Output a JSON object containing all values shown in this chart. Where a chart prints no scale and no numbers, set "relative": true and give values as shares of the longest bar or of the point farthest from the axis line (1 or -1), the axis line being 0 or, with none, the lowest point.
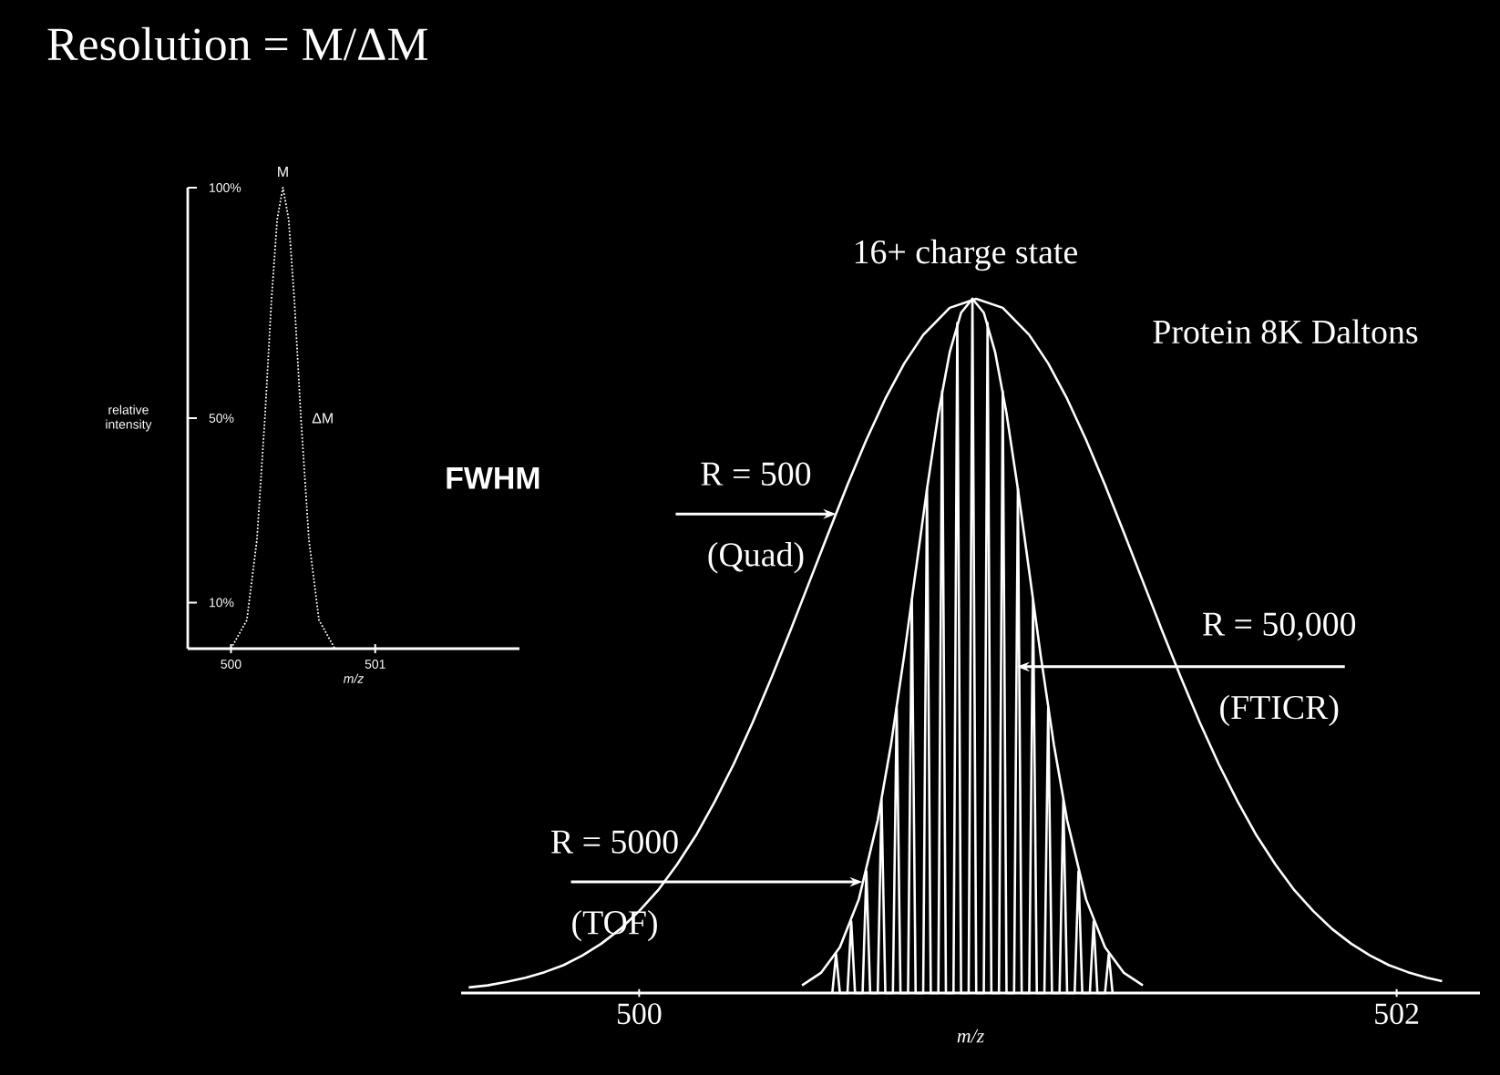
{
  "chart_data": [
    {
      "type": "line",
      "title": "Resolution = M/ΔM",
      "xlabel": "m/z",
      "ylabel": "relative intensity",
      "xlim": [
        499.7,
        502.0
      ],
      "xticks": [
        500,
        501
      ],
      "ylim": [
        0,
        100
      ],
      "yticks": [
        {
          "value": 10,
          "label": "10%"
        },
        {
          "value": 50,
          "label": "50%"
        },
        {
          "value": 100,
          "label": "100%"
        }
      ],
      "line_style": "dotted",
      "series": [
        {
          "color": "#ffffff",
          "x": [
            500.0,
            500.11,
            500.18,
            500.235,
            500.28,
            500.32,
            500.36,
            500.4,
            500.44,
            500.485,
            500.54,
            500.61,
            500.72
          ],
          "values": [
            0,
            6.2,
            23.7,
            50,
            75.3,
            93.1,
            100,
            93.1,
            75.3,
            50,
            23.7,
            6.2,
            0
          ]
        }
      ],
      "annotations": [
        {
          "text": "M",
          "x": 500.36,
          "y": 100
        },
        {
          "text": "ΔM",
          "x": 500.485,
          "y": 50
        },
        "FWHM"
      ]
    },
    {
      "type": "line",
      "xlabel": "m/z",
      "xlim": [
        499.53,
        502.22
      ],
      "xticks": [
        500,
        502
      ],
      "relative": true,
      "line_style": "solid",
      "series": [
        {
          "color": "#ffffff",
          "x": [
            499.55,
            499.6,
            499.65,
            499.7,
            499.75,
            499.8,
            499.85,
            499.9,
            499.95,
            500.0,
            500.05,
            500.1,
            500.15,
            500.2,
            500.25,
            500.3,
            500.35,
            500.4,
            500.45,
            500.5,
            500.55,
            500.6,
            500.65,
            500.7,
            500.75,
            500.82,
            500.89,
            500.96,
            501.03,
            501.08,
            501.13,
            501.18,
            501.23,
            501.28,
            501.33,
            501.38,
            501.43,
            501.48,
            501.53,
            501.58,
            501.63,
            501.68,
            501.73,
            501.78,
            501.83,
            501.88,
            501.93,
            501.98,
            502.03,
            502.08,
            502.12
          ],
          "values": [
            0.008,
            0.011,
            0.016,
            0.022,
            0.03,
            0.04,
            0.054,
            0.071,
            0.092,
            0.118,
            0.148,
            0.185,
            0.227,
            0.276,
            0.33,
            0.39,
            0.455,
            0.523,
            0.593,
            0.663,
            0.732,
            0.797,
            0.856,
            0.907,
            0.948,
            0.987,
            1,
            0.987,
            0.948,
            0.907,
            0.856,
            0.797,
            0.732,
            0.663,
            0.593,
            0.523,
            0.455,
            0.39,
            0.33,
            0.276,
            0.227,
            0.185,
            0.148,
            0.118,
            0.092,
            0.071,
            0.054,
            0.04,
            0.03,
            0.022,
            0.017
          ]
        },
        {
          "color": "#ffffff",
          "x": [
            500.43,
            500.48,
            500.53,
            500.58,
            500.63,
            500.665,
            500.7,
            500.73,
            500.76,
            500.79,
            500.82,
            500.85,
            500.88,
            500.91,
            500.94,
            500.97,
            501.0,
            501.03,
            501.06,
            501.095,
            501.13,
            501.18,
            501.23,
            501.28,
            501.33
          ],
          "values": [
            0.011,
            0.029,
            0.066,
            0.135,
            0.249,
            0.358,
            0.487,
            0.607,
            0.726,
            0.835,
            0.923,
            0.98,
            1,
            0.98,
            0.923,
            0.835,
            0.726,
            0.607,
            0.487,
            0.358,
            0.249,
            0.135,
            0.066,
            0.029,
            0.011
          ]
        },
        {
          "color": "#ffffff",
          "x": [
            500.51,
            500.52,
            500.53,
            500.55,
            500.56,
            500.57,
            500.59,
            500.6,
            500.61,
            500.63,
            500.64,
            500.65,
            500.67,
            500.68,
            500.69,
            500.71,
            500.72,
            500.73,
            500.75,
            500.76,
            500.77,
            500.79,
            500.8,
            500.81,
            500.83,
            500.84,
            500.85,
            500.87,
            500.88,
            500.89,
            500.91,
            500.92,
            500.93,
            500.95,
            500.96,
            500.97,
            500.99,
            501.0,
            501.01,
            501.03,
            501.04,
            501.05,
            501.07,
            501.08,
            501.09,
            501.11,
            501.12,
            501.13,
            501.15,
            501.16,
            501.17,
            501.19,
            501.2,
            501.21,
            501.23,
            501.24,
            501.25
          ],
          "values": [
            0,
            0.056,
            0,
            0,
            0.103,
            0,
            0,
            0.175,
            0,
            0,
            0.278,
            0,
            0,
            0.411,
            0,
            0,
            0.566,
            0,
            0,
            0.726,
            0,
            0,
            0.867,
            0,
            0,
            0.965,
            0,
            0,
            1,
            0,
            0,
            0.965,
            0,
            0,
            0.867,
            0,
            0,
            0.726,
            0,
            0,
            0.566,
            0,
            0,
            0.411,
            0,
            0,
            0.278,
            0,
            0,
            0.175,
            0,
            0,
            0.103,
            0,
            0,
            0.056,
            0
          ]
        }
      ],
      "annotations": [
        "16+ charge state",
        "Protein 8K Daltons",
        {
          "text": "R = 500",
          "x": 500.52,
          "y": 0.69
        },
        "(Quad)",
        {
          "text": "R = 50,000",
          "x": 500.997,
          "y": 0.47
        },
        "(FTICR)",
        {
          "text": "R = 5000",
          "x": 500.59,
          "y": 0.16
        },
        "(TOF)"
      ]
    }
  ]
}
